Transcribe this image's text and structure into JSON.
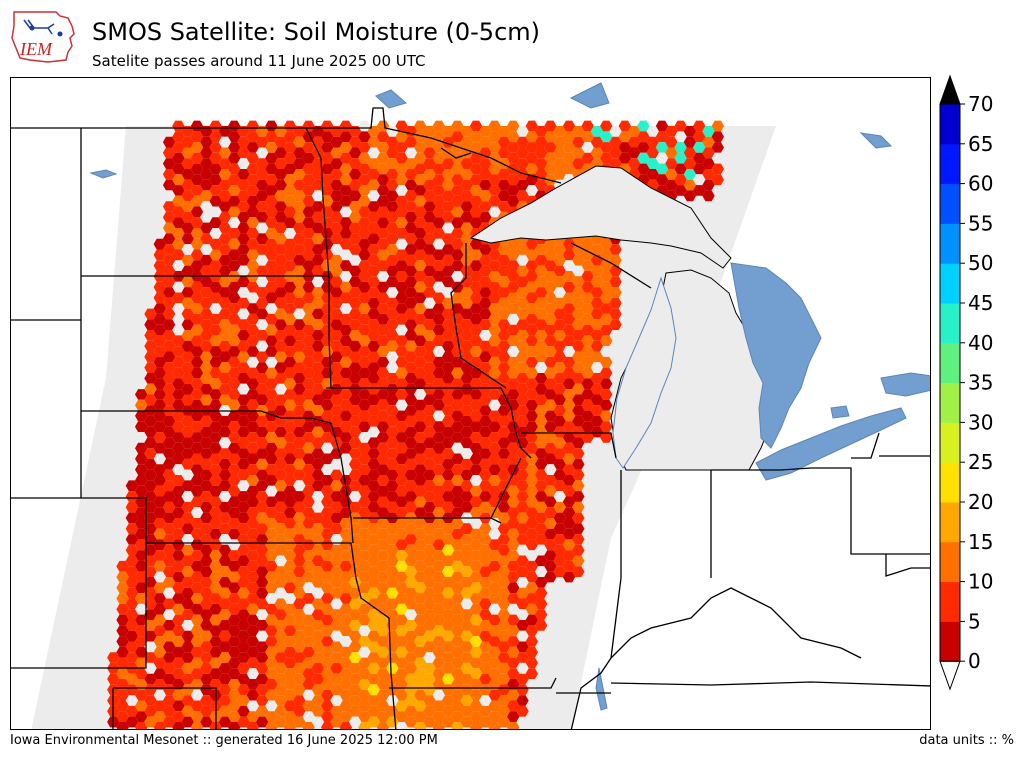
{
  "header": {
    "logo_text": "IEM",
    "title": "SMOS Satellite: Soil Moisture (0-5cm)",
    "subtitle": "Satelite passes around 11 June 2025 00 UTC"
  },
  "footer": {
    "left": "Iowa Environmental Mesonet :: generated 16 June 2025 12:00 PM",
    "right": "data units :: %"
  },
  "colorbar": {
    "ticks": [
      "0",
      "5",
      "10",
      "15",
      "20",
      "25",
      "30",
      "35",
      "40",
      "45",
      "50",
      "55",
      "60",
      "65",
      "70"
    ],
    "colors": [
      "#c80000",
      "#ff2a00",
      "#ff7000",
      "#ffa800",
      "#ffe000",
      "#d8f020",
      "#a0f048",
      "#60f080",
      "#28f0c8",
      "#00d0ff",
      "#0090ff",
      "#0050ff",
      "#0018ff",
      "#0000d0"
    ],
    "over_color": "#000000",
    "under_color": "#ffffff"
  },
  "map": {
    "water_color": "#729fcf",
    "land_color": "#ffffff",
    "no_data_color": "#ececec",
    "border_color": "#000000"
  }
}
